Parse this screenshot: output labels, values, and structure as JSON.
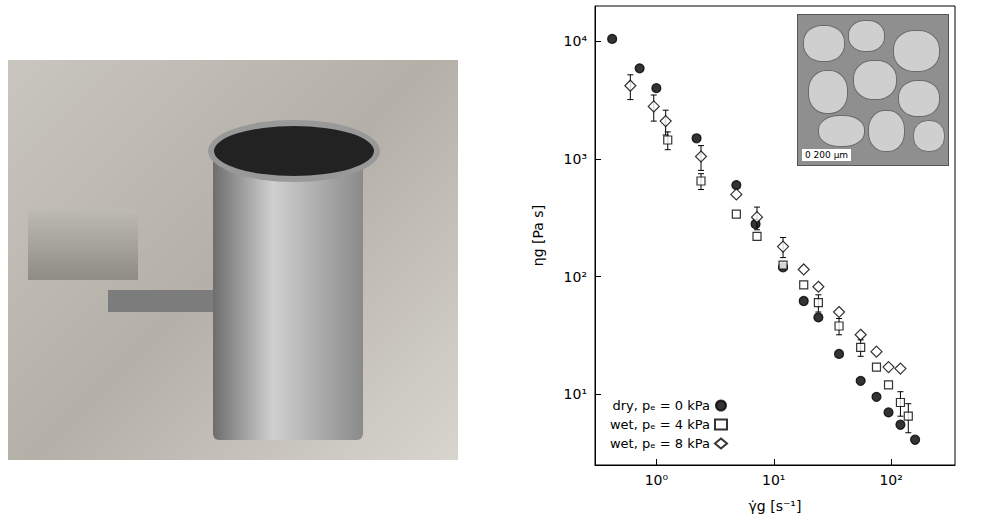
{
  "chart_data": {
    "type": "scatter",
    "x_label": "γ̇g [s⁻¹]",
    "y_label": "ηg [Pa s]",
    "log": true,
    "grid": false,
    "legend": "lower left",
    "xlim": [
      0.3,
      350
    ],
    "ylim": [
      2.5,
      20000
    ],
    "xticks": [
      {
        "value": 1,
        "label": "10⁰"
      },
      {
        "value": 10,
        "label": "10¹"
      },
      {
        "value": 100,
        "label": "10²"
      }
    ],
    "yticks": [
      {
        "value": 10,
        "label": "10¹"
      },
      {
        "value": 100,
        "label": "10²"
      },
      {
        "value": 1000,
        "label": "10³"
      },
      {
        "value": 10000,
        "label": "10⁴"
      }
    ],
    "annotations": [
      "0  200 µm"
    ],
    "series": [
      {
        "name": "dry, pₑ = 0 kPa",
        "color": "#000000",
        "marker": "filled circle",
        "x": [
          0.42,
          0.72,
          1.0,
          2.2,
          4.8,
          7.0,
          12,
          18,
          24,
          36,
          55,
          75,
          95,
          120,
          160
        ],
        "values": [
          10500,
          5900,
          4000,
          1500,
          600,
          280,
          120,
          62,
          45,
          22,
          13,
          9.5,
          7,
          5.5,
          4.1
        ],
        "errors": [
          null,
          null,
          null,
          null,
          null,
          null,
          null,
          null,
          null,
          null,
          null,
          null,
          null,
          null,
          null
        ]
      },
      {
        "name": "wet, pₑ = 4 kPa",
        "color": "#000000",
        "marker": "open square",
        "x": [
          1.25,
          2.4,
          4.8,
          7.2,
          12,
          18,
          24,
          36,
          55,
          75,
          95,
          120,
          140
        ],
        "values": [
          1450,
          650,
          340,
          220,
          125,
          85,
          60,
          38,
          25,
          17,
          12,
          8.5,
          6.5
        ],
        "errors": [
          250,
          100,
          null,
          null,
          null,
          null,
          10,
          6,
          4,
          null,
          null,
          2,
          1.8
        ]
      },
      {
        "name": "wet, pₑ = 8 kPa",
        "color": "#000000",
        "marker": "open diamond",
        "x": [
          0.6,
          0.95,
          1.2,
          2.4,
          4.8,
          7.2,
          12,
          18,
          24,
          36,
          55,
          75,
          95,
          120
        ],
        "values": [
          4200,
          2800,
          2100,
          1050,
          500,
          320,
          180,
          115,
          82,
          50,
          32,
          23,
          17,
          16.5
        ],
        "errors": [
          1000,
          700,
          500,
          250,
          null,
          70,
          35,
          null,
          null,
          null,
          null,
          null,
          null,
          null
        ]
      }
    ]
  }
}
